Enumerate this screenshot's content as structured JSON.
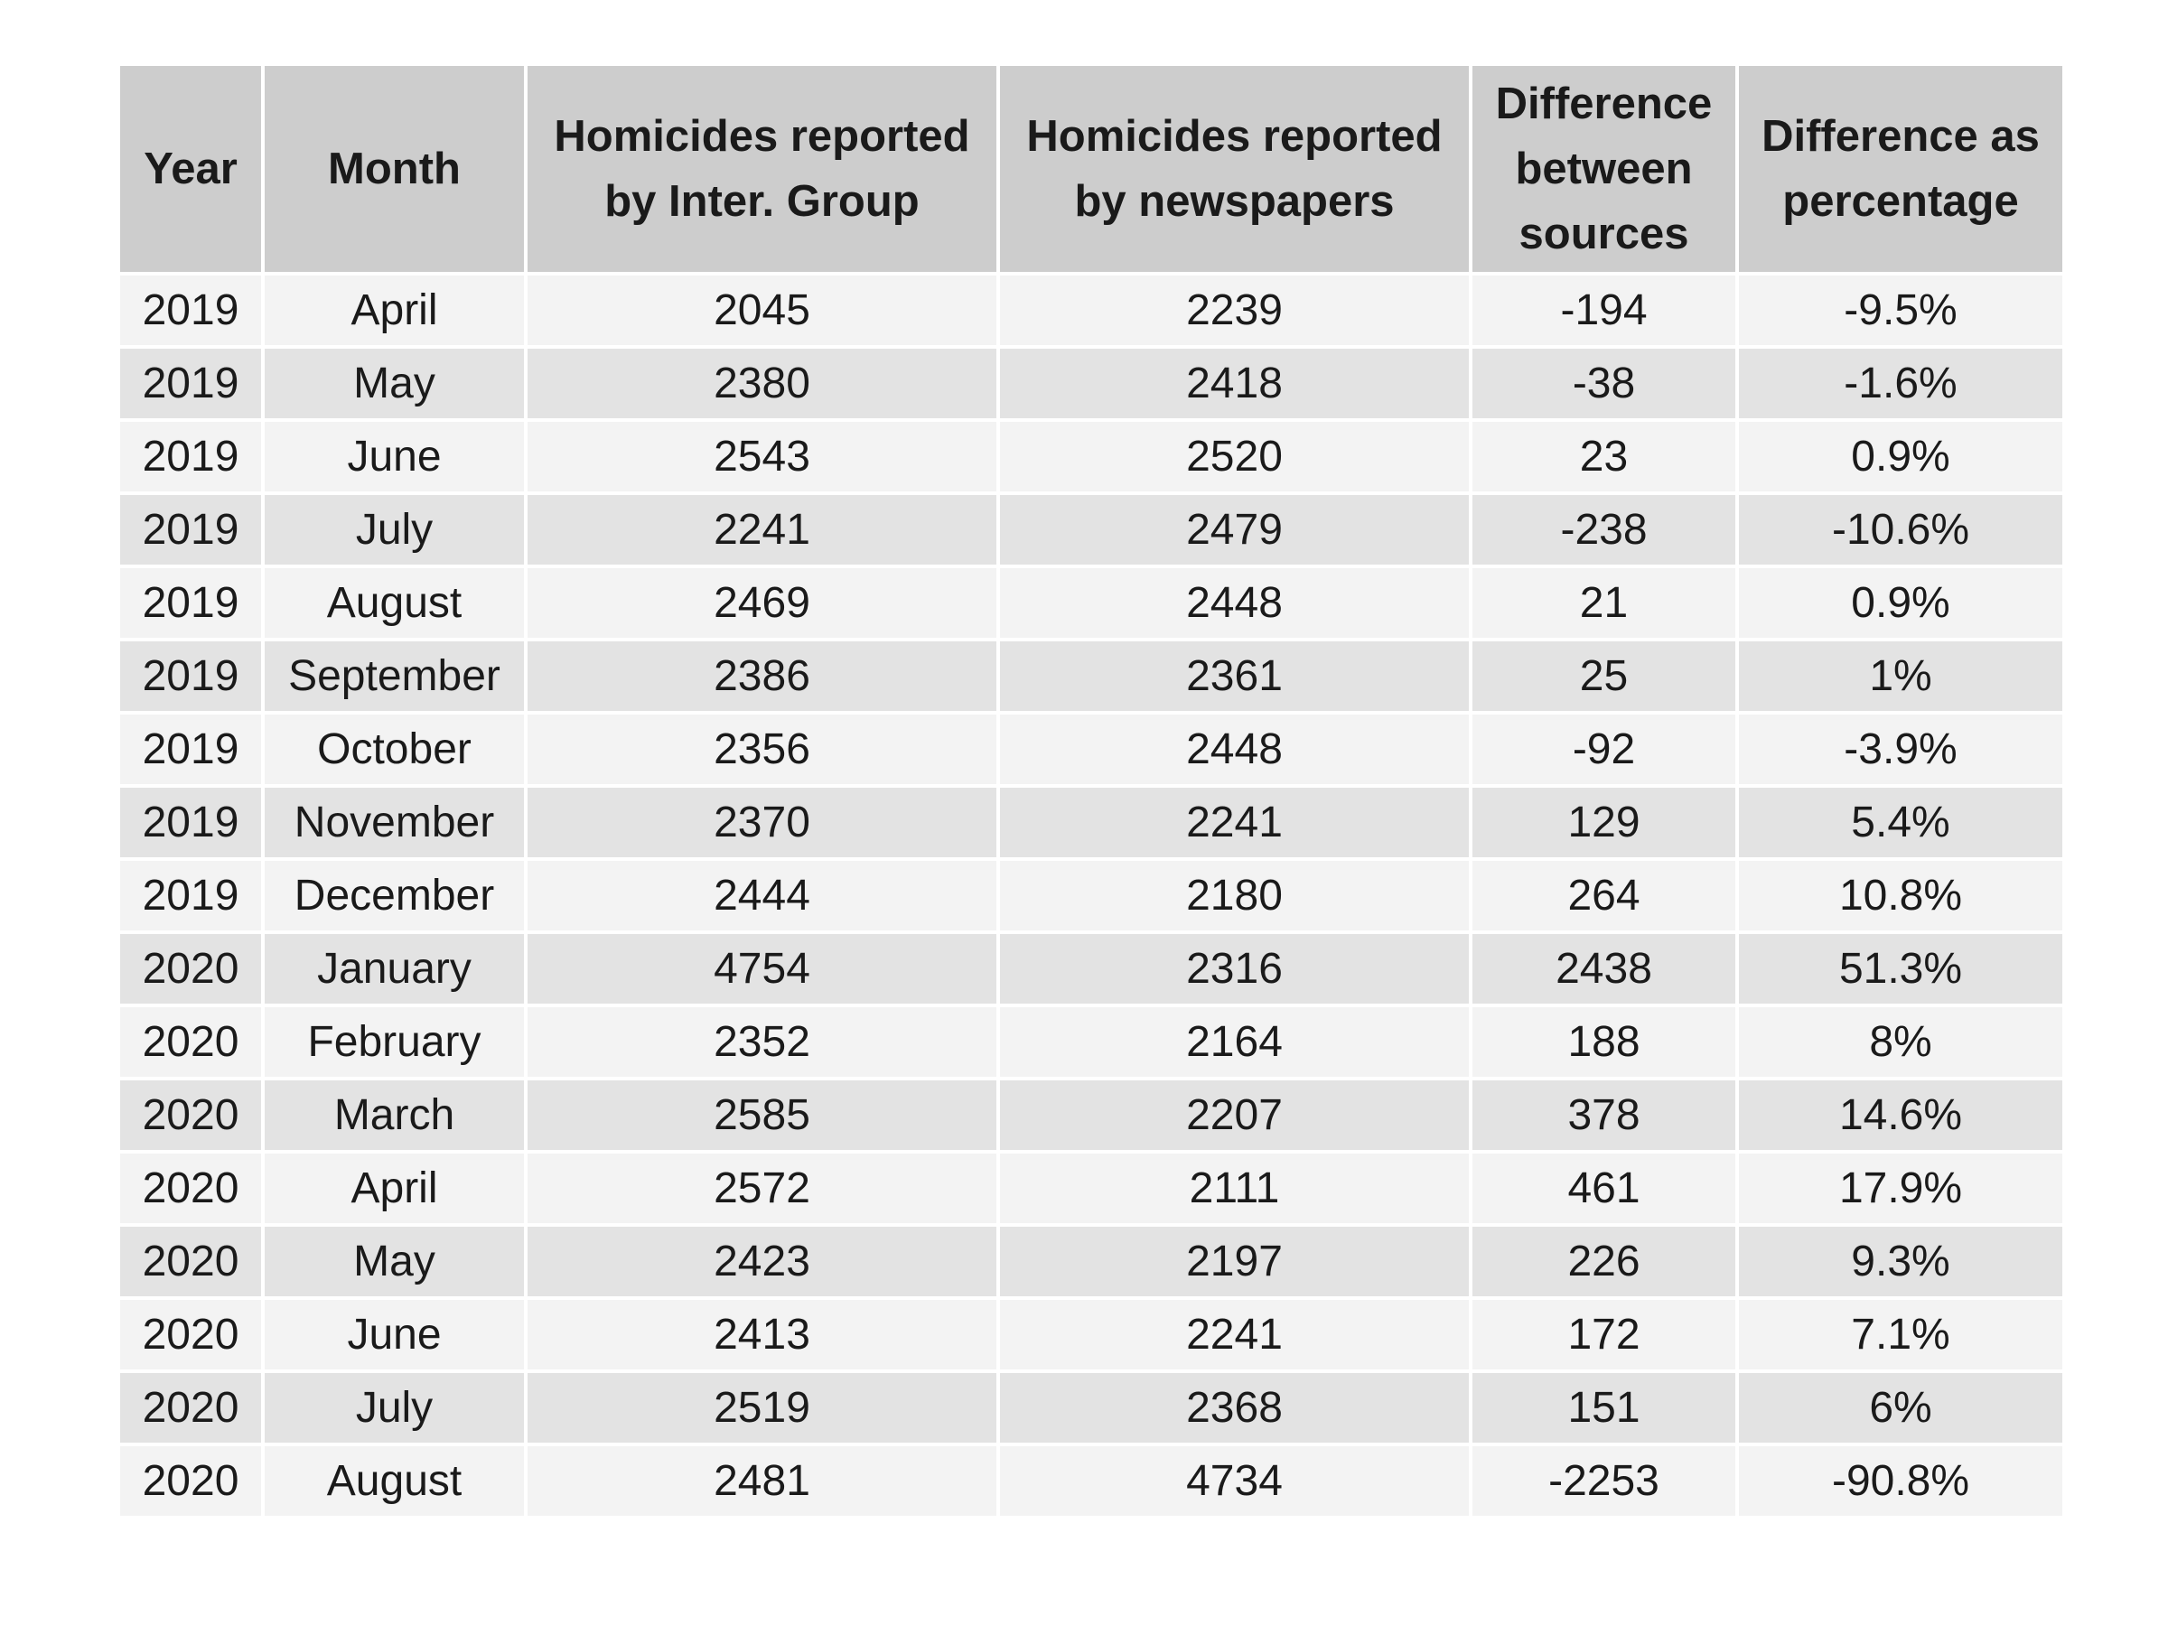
{
  "chart_data": {
    "type": "table",
    "columns": [
      "Year",
      "Month",
      "Homicides reported by Inter. Group",
      "Homicides reported by newspapers",
      "Difference between sources",
      "Difference as percentage"
    ],
    "rows": [
      [
        "2019",
        "April",
        "2045",
        "2239",
        "-194",
        "-9.5%"
      ],
      [
        "2019",
        "May",
        "2380",
        "2418",
        "-38",
        "-1.6%"
      ],
      [
        "2019",
        "June",
        "2543",
        "2520",
        "23",
        "0.9%"
      ],
      [
        "2019",
        "July",
        "2241",
        "2479",
        "-238",
        "-10.6%"
      ],
      [
        "2019",
        "August",
        "2469",
        "2448",
        "21",
        "0.9%"
      ],
      [
        "2019",
        "September",
        "2386",
        "2361",
        "25",
        "1%"
      ],
      [
        "2019",
        "October",
        "2356",
        "2448",
        "-92",
        "-3.9%"
      ],
      [
        "2019",
        "November",
        "2370",
        "2241",
        "129",
        "5.4%"
      ],
      [
        "2019",
        "December",
        "2444",
        "2180",
        "264",
        "10.8%"
      ],
      [
        "2020",
        "January",
        "4754",
        "2316",
        "2438",
        "51.3%"
      ],
      [
        "2020",
        "February",
        "2352",
        "2164",
        "188",
        "8%"
      ],
      [
        "2020",
        "March",
        "2585",
        "2207",
        "378",
        "14.6%"
      ],
      [
        "2020",
        "April",
        "2572",
        "2111",
        "461",
        "17.9%"
      ],
      [
        "2020",
        "May",
        "2423",
        "2197",
        "226",
        "9.3%"
      ],
      [
        "2020",
        "June",
        "2413",
        "2241",
        "172",
        "7.1%"
      ],
      [
        "2020",
        "July",
        "2519",
        "2368",
        "151",
        "6%"
      ],
      [
        "2020",
        "August",
        "2481",
        "4734",
        "-2253",
        "-90.8%"
      ]
    ]
  }
}
